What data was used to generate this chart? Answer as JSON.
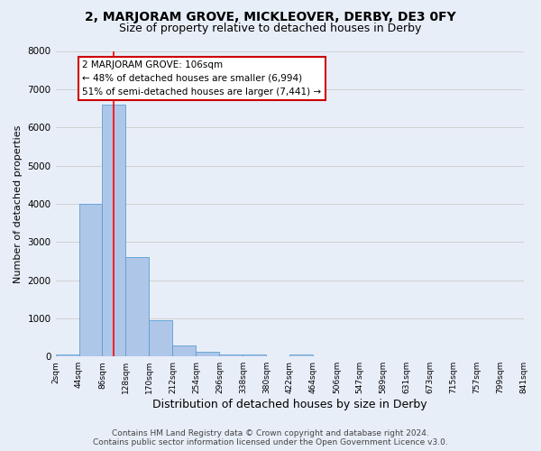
{
  "title": "2, MARJORAM GROVE, MICKLEOVER, DERBY, DE3 0FY",
  "subtitle": "Size of property relative to detached houses in Derby",
  "xlabel": "Distribution of detached houses by size in Derby",
  "ylabel": "Number of detached properties",
  "bin_edges": [
    2,
    44,
    86,
    128,
    170,
    212,
    254,
    296,
    338,
    380,
    422,
    464,
    506,
    547,
    589,
    631,
    673,
    715,
    757,
    799,
    841
  ],
  "bar_heights": [
    50,
    4000,
    6600,
    2600,
    950,
    300,
    120,
    60,
    60,
    0,
    60,
    0,
    0,
    0,
    0,
    0,
    0,
    0,
    0,
    0
  ],
  "bar_color": "#aec6e8",
  "bar_edge_color": "#5a9fd4",
  "property_size": 106,
  "red_line_x": 106,
  "annotation_text": "2 MARJORAM GROVE: 106sqm\n← 48% of detached houses are smaller (6,994)\n51% of semi-detached houses are larger (7,441) →",
  "annotation_box_color": "#ffffff",
  "annotation_box_edge_color": "#cc0000",
  "ylim": [
    0,
    8000
  ],
  "yticks": [
    0,
    1000,
    2000,
    3000,
    4000,
    5000,
    6000,
    7000,
    8000
  ],
  "tick_labels": [
    "2sqm",
    "44sqm",
    "86sqm",
    "128sqm",
    "170sqm",
    "212sqm",
    "254sqm",
    "296sqm",
    "338sqm",
    "380sqm",
    "422sqm",
    "464sqm",
    "506sqm",
    "547sqm",
    "589sqm",
    "631sqm",
    "673sqm",
    "715sqm",
    "757sqm",
    "799sqm",
    "841sqm"
  ],
  "grid_color": "#d0d0d0",
  "background_color": "#e8eef8",
  "footer_line1": "Contains HM Land Registry data © Crown copyright and database right 2024.",
  "footer_line2": "Contains public sector information licensed under the Open Government Licence v3.0.",
  "title_fontsize": 10,
  "subtitle_fontsize": 9,
  "xlabel_fontsize": 9,
  "ylabel_fontsize": 8,
  "tick_fontsize": 6.5,
  "footer_fontsize": 6.5
}
